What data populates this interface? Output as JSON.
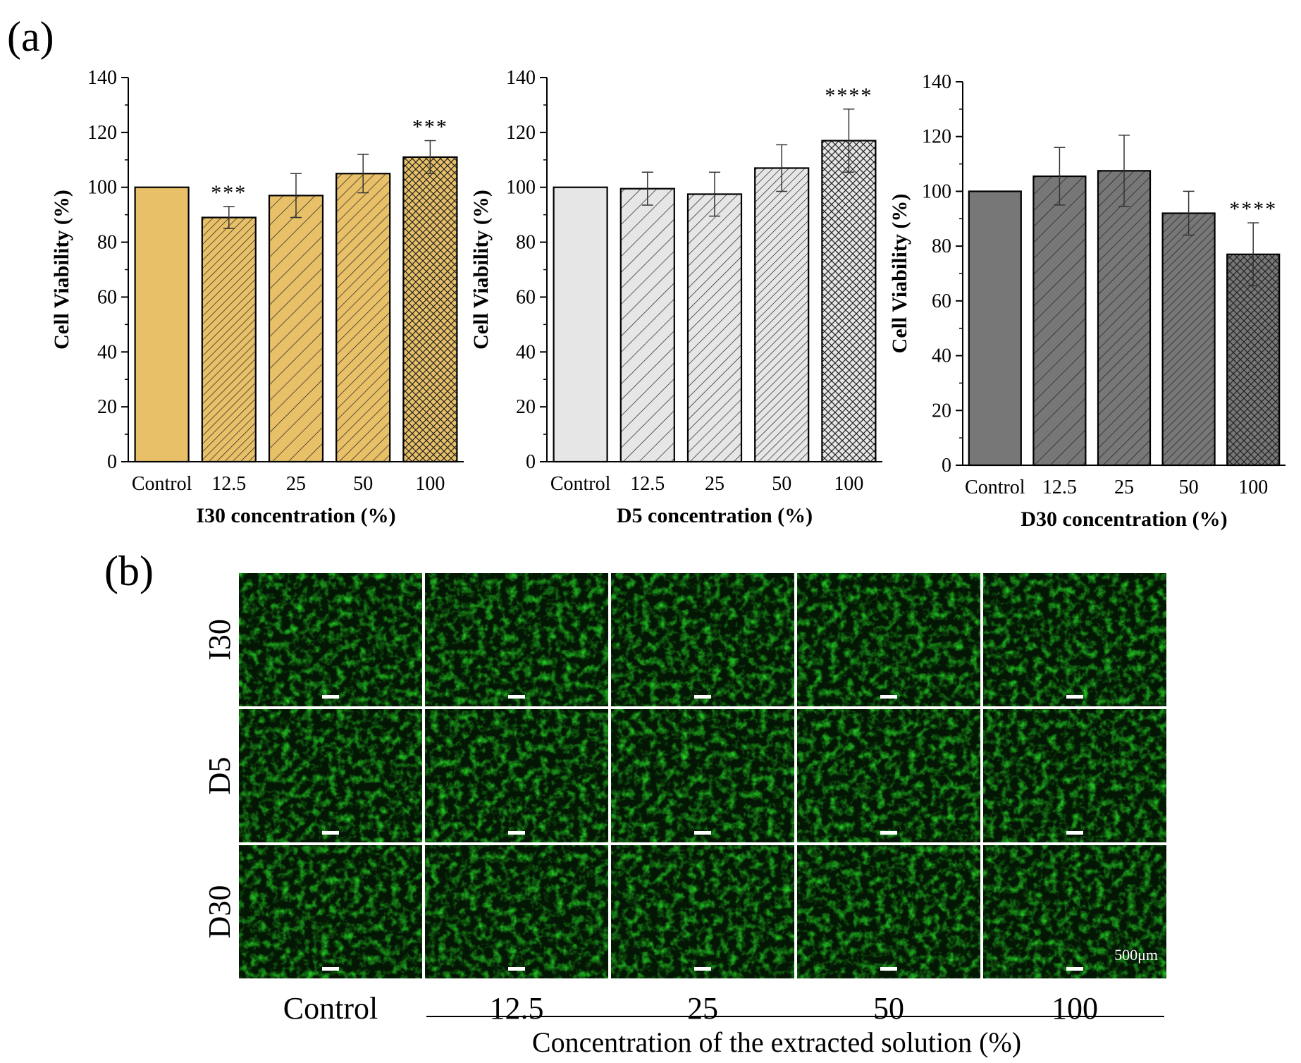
{
  "panel_a_label": "(a)",
  "panel_b_label": "(b)",
  "chart_data": [
    {
      "type": "bar",
      "categories": [
        "Control",
        "12.5",
        "25",
        "50",
        "100"
      ],
      "values": [
        100,
        89,
        97,
        105,
        111
      ],
      "errors": [
        0,
        4,
        8,
        7,
        6
      ],
      "significance": [
        "",
        "***",
        "",
        "",
        "***"
      ],
      "xlabel": "I30 concentration (%)",
      "ylabel": "Cell Viability (%)",
      "ylim": [
        0,
        140
      ],
      "yticks": [
        0,
        20,
        40,
        60,
        80,
        100,
        120,
        140
      ],
      "color": "#e8c068",
      "patterns": [
        "solid",
        "hatch-dense",
        "hatch-sparse",
        "hatch-medium",
        "crosshatch"
      ]
    },
    {
      "type": "bar",
      "categories": [
        "Control",
        "12.5",
        "25",
        "50",
        "100"
      ],
      "values": [
        100,
        99.5,
        97.5,
        107,
        117
      ],
      "errors": [
        0,
        6,
        8,
        8.5,
        11.5
      ],
      "significance": [
        "",
        "",
        "",
        "",
        "****"
      ],
      "xlabel": "D5 concentration (%)",
      "ylabel": "Cell Viability (%)",
      "ylim": [
        0,
        140
      ],
      "yticks": [
        0,
        20,
        40,
        60,
        80,
        100,
        120,
        140
      ],
      "color": "#e6e6e6",
      "patterns": [
        "solid",
        "hatch-sparse",
        "hatch-medium",
        "hatch-dense",
        "crosshatch"
      ]
    },
    {
      "type": "bar",
      "categories": [
        "Control",
        "12.5",
        "25",
        "50",
        "100"
      ],
      "values": [
        100,
        105.5,
        107.5,
        92,
        77
      ],
      "errors": [
        0,
        10.5,
        13,
        8,
        11.5
      ],
      "significance": [
        "",
        "",
        "",
        "",
        "****"
      ],
      "xlabel": "D30 concentration (%)",
      "ylabel": "Cell Viability (%)",
      "ylim": [
        0,
        140
      ],
      "yticks": [
        0,
        20,
        40,
        60,
        80,
        100,
        120,
        140
      ],
      "color": "#777777",
      "patterns": [
        "solid",
        "hatch-sparse",
        "hatch-medium",
        "hatch-dense",
        "crosshatch"
      ]
    }
  ],
  "micrograph_grid": {
    "rows": [
      "I30",
      "D5",
      "D30"
    ],
    "columns": [
      "Control",
      "12.5",
      "25",
      "50",
      "100"
    ],
    "x_title": "Concentration of the extracted solution (%)",
    "scale_bar": "500μm",
    "fluorescence_color": "#22c422"
  }
}
